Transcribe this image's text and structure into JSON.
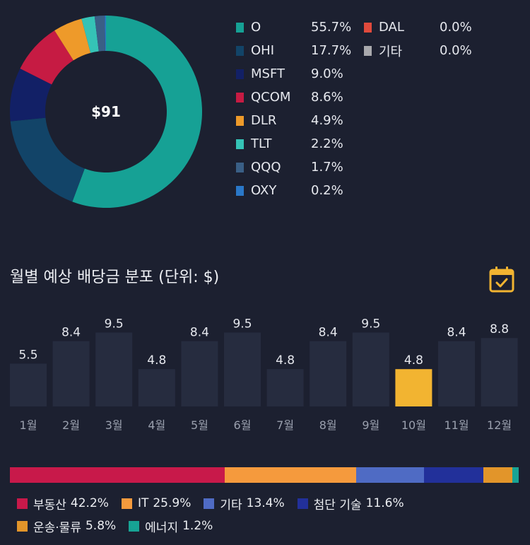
{
  "portfolio": {
    "center_label": "$91",
    "holdings": [
      {
        "ticker": "O",
        "pct": "55.7%",
        "value": 55.7,
        "color": "#16a195"
      },
      {
        "ticker": "OHI",
        "pct": "17.7%",
        "value": 17.7,
        "color": "#124468"
      },
      {
        "ticker": "MSFT",
        "pct": "9.0%",
        "value": 9.0,
        "color": "#122066"
      },
      {
        "ticker": "QCOM",
        "pct": "8.6%",
        "value": 8.6,
        "color": "#c61b43"
      },
      {
        "ticker": "DLR",
        "pct": "4.9%",
        "value": 4.9,
        "color": "#ee9a2a"
      },
      {
        "ticker": "TLT",
        "pct": "2.2%",
        "value": 2.2,
        "color": "#35c3b6"
      },
      {
        "ticker": "QQQ",
        "pct": "1.7%",
        "value": 1.7,
        "color": "#3a5f86"
      },
      {
        "ticker": "OXY",
        "pct": "0.2%",
        "value": 0.2,
        "color": "#2a78c8"
      },
      {
        "ticker": "DAL",
        "pct": "0.0%",
        "value": 0.0,
        "color": "#e04a3c"
      },
      {
        "ticker": "기타",
        "pct": "0.0%",
        "value": 0.0,
        "color": "#a9a9ad"
      }
    ]
  },
  "monthly": {
    "title": "월별 예상 배당금 분포 (단위: $)",
    "calendar_icon": "calendar-check-icon",
    "bar_color": "#262c3f",
    "highlight_color": "#f2b431"
  },
  "chart_data": {
    "type": "bar",
    "categories": [
      "1월",
      "2월",
      "3월",
      "4월",
      "5월",
      "6월",
      "7월",
      "8월",
      "9월",
      "10월",
      "11월",
      "12월"
    ],
    "values": [
      5.5,
      8.4,
      9.5,
      4.8,
      8.4,
      9.5,
      4.8,
      8.4,
      9.5,
      4.8,
      8.4,
      8.8
    ],
    "labels": [
      "5.5",
      "8.4",
      "9.5",
      "4.8",
      "8.4",
      "9.5",
      "4.8",
      "8.4",
      "9.5",
      "4.8",
      "8.4",
      "8.8"
    ],
    "highlight_index": 9,
    "ylim": [
      0,
      10
    ],
    "title": "월별 예상 배당금 분포 (단위: $)"
  },
  "sectors": [
    {
      "name": "부동산",
      "pct": "42.2%",
      "value": 42.2,
      "color": "#c8194a"
    },
    {
      "name": "IT",
      "pct": "25.9%",
      "value": 25.9,
      "color": "#f59a3d"
    },
    {
      "name": "기타",
      "pct": "13.4%",
      "value": 13.4,
      "color": "#4f6bc4"
    },
    {
      "name": "첨단 기술",
      "pct": "11.6%",
      "value": 11.6,
      "color": "#22309a"
    },
    {
      "name": "운송·물류",
      "pct": "5.8%",
      "value": 5.8,
      "color": "#e2952a"
    },
    {
      "name": "에너지",
      "pct": "1.2%",
      "value": 1.2,
      "color": "#17a394"
    }
  ]
}
